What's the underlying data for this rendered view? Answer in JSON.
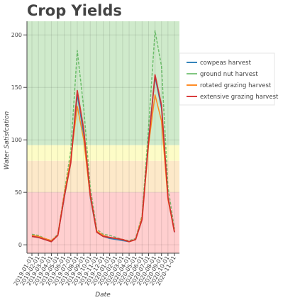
{
  "chart_data": {
    "type": "line",
    "title": "Crop Yields",
    "xlabel": "Date",
    "ylabel": "Water Satisfcation",
    "x": [
      "2019-01-01",
      "2019-02-01",
      "2019-03-01",
      "2019-04-01",
      "2019-05-01",
      "2019-06-01",
      "2019-07-01",
      "2019-08-01",
      "2019-09-01",
      "2019-10-01",
      "2019-11-01",
      "2019-12-01",
      "2020-01-01",
      "2020-02-01",
      "2020-03-01",
      "2020-04-01",
      "2020-05-01",
      "2020-06-01",
      "2020-07-01",
      "2020-08-01",
      "2020-09-01",
      "2020-10-01",
      "2020-11-01"
    ],
    "ylim": [
      -8,
      213
    ],
    "yticks": [
      0,
      50,
      100,
      150,
      200
    ],
    "grid": true,
    "legend_position": "right",
    "bands": [
      {
        "from": -8,
        "to": 50,
        "color": "#ffcfcf"
      },
      {
        "from": 50,
        "to": 80,
        "color": "#fde9c9"
      },
      {
        "from": 80,
        "to": 95,
        "color": "#fdfcc7"
      },
      {
        "from": 95,
        "to": 213,
        "color": "#cfeacb"
      }
    ],
    "series": [
      {
        "name": "cowpeas harvest",
        "color": "#1f77b4",
        "dashed": false,
        "values": [
          8,
          7,
          5,
          3,
          9,
          45,
          80,
          143,
          105,
          45,
          12,
          8,
          6,
          5,
          4,
          3,
          5,
          25,
          100,
          160,
          130,
          45,
          12
        ]
      },
      {
        "name": "ground nut harvest",
        "color": "#2ca02c",
        "dashed": true,
        "values": [
          10,
          9,
          6,
          4,
          10,
          50,
          90,
          185,
          130,
          55,
          15,
          10,
          9,
          7,
          5,
          4,
          6,
          28,
          112,
          204,
          170,
          55,
          15
        ]
      },
      {
        "name": "rotated grazing harvest",
        "color": "#ff7f0e",
        "dashed": false,
        "values": [
          9,
          8,
          6,
          4,
          9,
          48,
          82,
          132,
          100,
          46,
          13,
          9,
          7,
          6,
          5,
          3,
          5,
          26,
          95,
          143,
          118,
          43,
          13
        ]
      },
      {
        "name": "extensive grazing harvest",
        "color": "#d62728",
        "dashed": false,
        "values": [
          8,
          7,
          5,
          3,
          9,
          46,
          78,
          147,
          110,
          48,
          12,
          8,
          7,
          6,
          5,
          3,
          5,
          24,
          98,
          162,
          133,
          45,
          12
        ]
      }
    ]
  }
}
